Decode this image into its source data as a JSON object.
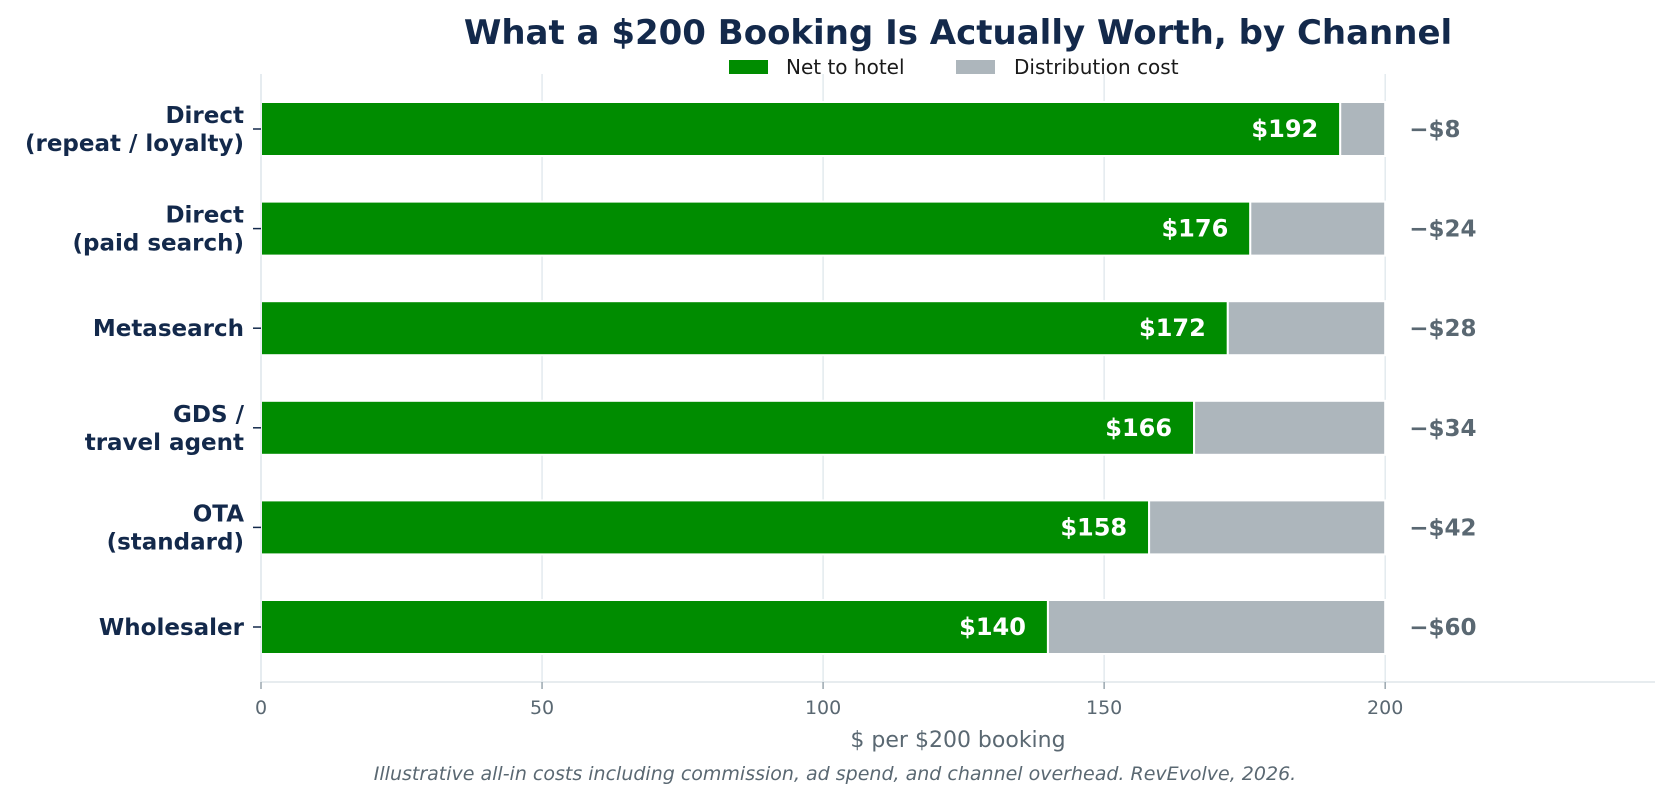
{
  "chart_data": {
    "type": "bar",
    "orientation": "horizontal",
    "stacked": true,
    "title": "What a $200 Booking Is Actually Worth, by Channel",
    "xlabel": "$ per $200 booking",
    "ylabel": "",
    "xlim": [
      0,
      248
    ],
    "xticks": [
      0,
      50,
      100,
      150,
      200
    ],
    "xtick_labels": [
      "0",
      "50",
      "100",
      "150",
      "200"
    ],
    "grid": "vertical",
    "legend_position": "top-center",
    "categories": [
      [
        "Direct",
        "(repeat / loyalty)"
      ],
      [
        "Direct",
        "(paid search)"
      ],
      [
        "Metasearch"
      ],
      [
        "GDS /",
        "travel agent"
      ],
      [
        "OTA",
        "(standard)"
      ],
      [
        "Wholesaler"
      ]
    ],
    "series": [
      {
        "name": "Net to hotel",
        "color": "#008c00",
        "values": [
          192,
          176,
          172,
          166,
          158,
          140
        ],
        "labels": [
          "$192",
          "$176",
          "$172",
          "$166",
          "$158",
          "$140"
        ]
      },
      {
        "name": "Distribution cost",
        "color": "#adb6bc",
        "values": [
          8,
          24,
          28,
          34,
          42,
          60
        ],
        "labels": [
          "−$8",
          "−$24",
          "−$28",
          "−$34",
          "−$42",
          "−$60"
        ]
      }
    ],
    "footnote": "Illustrative all-in costs including commission, ad spend, and channel overhead. RevEvolve, 2026."
  }
}
